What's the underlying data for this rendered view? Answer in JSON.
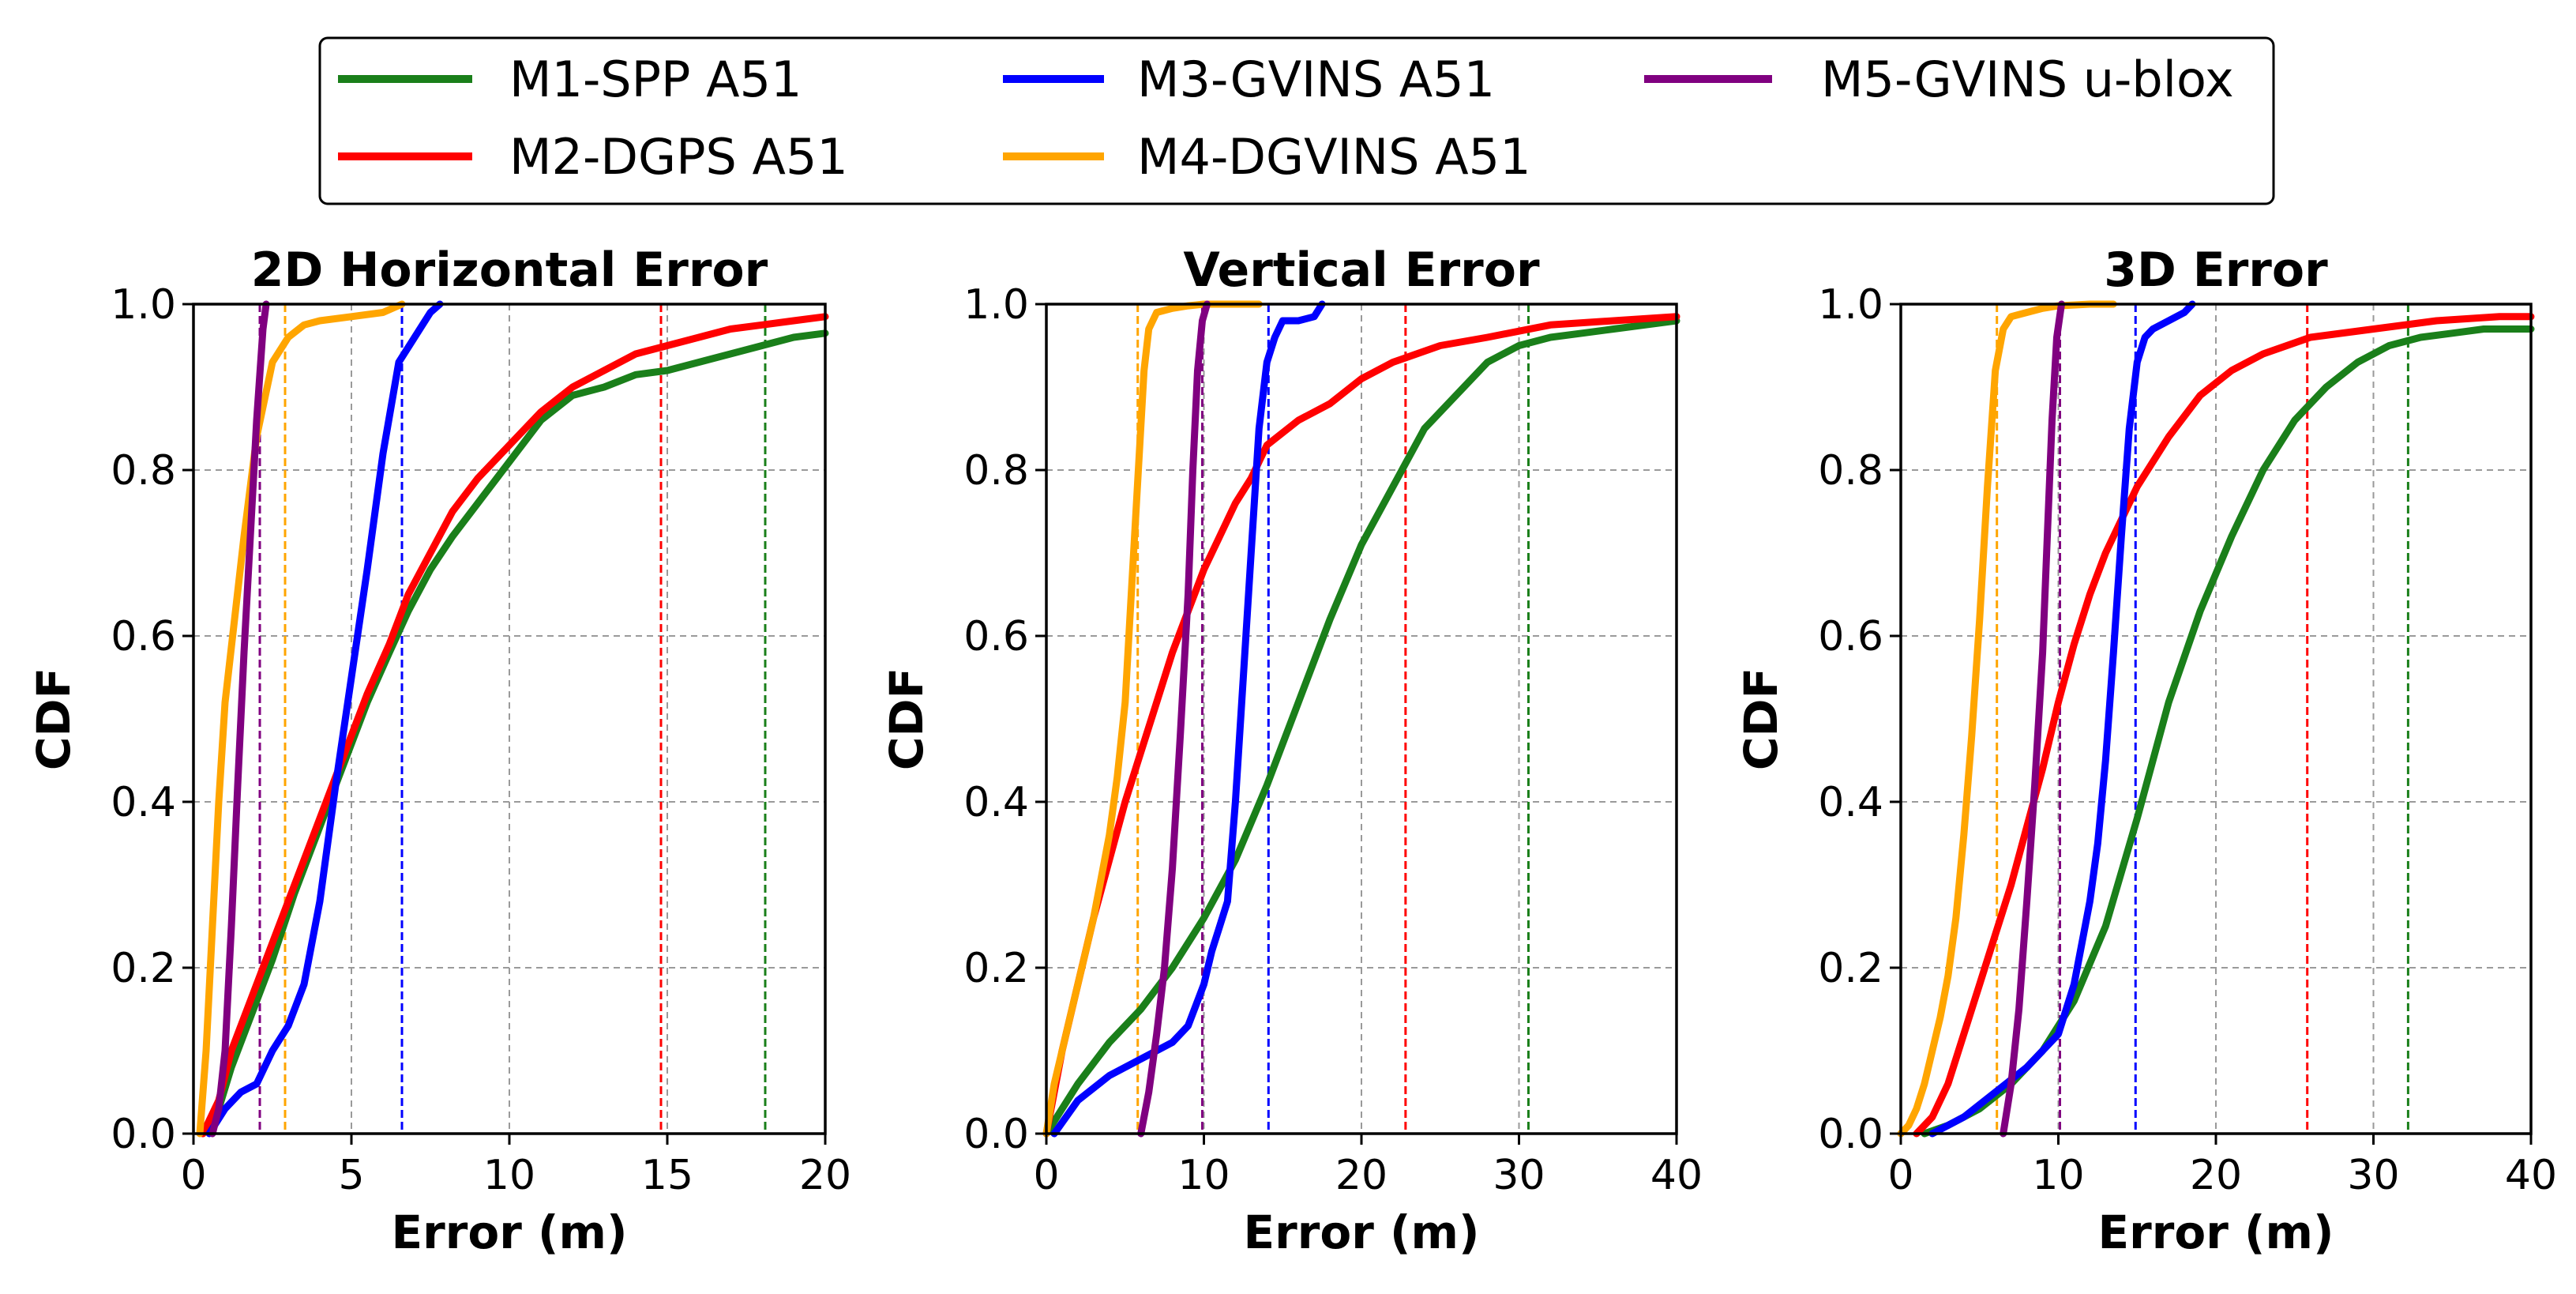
{
  "colors": {
    "M1": "#1a7f1a",
    "M2": "#ff0000",
    "M3": "#0000ff",
    "M4": "#ffa500",
    "M5": "#800080",
    "grid": "#9a9a9a",
    "frame": "#000000"
  },
  "legend": {
    "placement": "top-center",
    "entries": [
      {
        "key": "M1",
        "label": "M1-SPP A51"
      },
      {
        "key": "M2",
        "label": "M2-DGPS A51"
      },
      {
        "key": "M3",
        "label": "M3-GVINS A51"
      },
      {
        "key": "M4",
        "label": "M4-DGVINS A51"
      },
      {
        "key": "M5",
        "label": "M5-GVINS u-blox"
      }
    ]
  },
  "chart_data": [
    {
      "type": "line",
      "title": "2D Horizontal Error",
      "xlabel": "Error (m)",
      "ylabel": "CDF",
      "xlim": [
        0,
        20
      ],
      "ylim": [
        0,
        1.0
      ],
      "xticks": [
        0,
        5,
        10,
        15,
        20
      ],
      "xtick_labels": [
        "0",
        "5",
        "10",
        "15",
        "20"
      ],
      "yticks": [
        0,
        0.2,
        0.4,
        0.6,
        0.8,
        1.0
      ],
      "ytick_labels": [
        "0.0",
        "0.2",
        "0.4",
        "0.6",
        "0.8",
        "1.0"
      ],
      "grid": true,
      "series": [
        {
          "name": "M1-SPP A51",
          "key": "M1",
          "x": [
            0.3,
            0.8,
            1.2,
            1.8,
            2.5,
            3.2,
            4.0,
            4.8,
            5.5,
            6.2,
            6.8,
            7.5,
            8.2,
            9.0,
            10.0,
            11.0,
            12.0,
            13.0,
            14.0,
            15.0,
            16.0,
            17.0,
            18.0,
            19.0,
            20.0
          ],
          "y": [
            0,
            0.03,
            0.08,
            0.14,
            0.21,
            0.29,
            0.37,
            0.45,
            0.52,
            0.58,
            0.63,
            0.68,
            0.72,
            0.76,
            0.81,
            0.86,
            0.89,
            0.9,
            0.915,
            0.92,
            0.93,
            0.94,
            0.95,
            0.96,
            0.965
          ],
          "p95": 18.1
        },
        {
          "name": "M2-DGPS A51",
          "key": "M2",
          "x": [
            0.3,
            0.8,
            1.2,
            1.8,
            2.5,
            3.2,
            4.0,
            4.8,
            5.5,
            6.2,
            6.8,
            7.5,
            8.2,
            9.0,
            10.0,
            11.0,
            12.0,
            13.0,
            14.0,
            15.0,
            16.0,
            17.0,
            18.0,
            19.0,
            20.0
          ],
          "y": [
            0,
            0.04,
            0.1,
            0.16,
            0.23,
            0.3,
            0.38,
            0.46,
            0.53,
            0.59,
            0.65,
            0.7,
            0.75,
            0.79,
            0.83,
            0.87,
            0.9,
            0.92,
            0.94,
            0.95,
            0.96,
            0.97,
            0.975,
            0.98,
            0.985
          ],
          "p95": 14.8
        },
        {
          "name": "M3-GVINS A51",
          "key": "M3",
          "x": [
            0.5,
            1.0,
            1.5,
            2.0,
            2.5,
            3.0,
            3.5,
            4.0,
            4.5,
            5.0,
            5.5,
            6.0,
            6.5,
            7.0,
            7.5,
            7.8
          ],
          "y": [
            0,
            0.03,
            0.05,
            0.06,
            0.1,
            0.13,
            0.18,
            0.28,
            0.42,
            0.55,
            0.68,
            0.82,
            0.93,
            0.96,
            0.99,
            1.0
          ],
          "p95": 6.6
        },
        {
          "name": "M4-DGVINS A51",
          "key": "M4",
          "x": [
            0.2,
            0.4,
            0.6,
            0.8,
            1.0,
            1.3,
            1.6,
            2.0,
            2.5,
            3.0,
            3.5,
            4.0,
            5.0,
            6.0,
            6.6
          ],
          "y": [
            0,
            0.1,
            0.25,
            0.4,
            0.52,
            0.62,
            0.72,
            0.84,
            0.93,
            0.96,
            0.975,
            0.98,
            0.985,
            0.99,
            1.0
          ],
          "p95": 2.9
        },
        {
          "name": "M5-GVINS u-blox",
          "key": "M5",
          "x": [
            0.6,
            0.8,
            1.0,
            1.2,
            1.4,
            1.6,
            1.8,
            2.0,
            2.2,
            2.3
          ],
          "y": [
            0,
            0.03,
            0.1,
            0.25,
            0.42,
            0.58,
            0.72,
            0.86,
            0.97,
            1.0
          ],
          "p95": 2.1
        }
      ]
    },
    {
      "type": "line",
      "title": "Vertical Error",
      "xlabel": "Error (m)",
      "ylabel": "CDF",
      "xlim": [
        0,
        40
      ],
      "ylim": [
        0,
        1.0
      ],
      "xticks": [
        0,
        10,
        20,
        30,
        40
      ],
      "xtick_labels": [
        "0",
        "10",
        "20",
        "30",
        "40"
      ],
      "yticks": [
        0,
        0.2,
        0.4,
        0.6,
        0.8,
        1.0
      ],
      "ytick_labels": [
        "0.0",
        "0.2",
        "0.4",
        "0.6",
        "0.8",
        "1.0"
      ],
      "grid": true,
      "series": [
        {
          "name": "M1-SPP A51",
          "key": "M1",
          "x": [
            0,
            2,
            4,
            6,
            8,
            10,
            12,
            14,
            16,
            18,
            20,
            22,
            24,
            26,
            28,
            30,
            32,
            34,
            36,
            38,
            40
          ],
          "y": [
            0,
            0.06,
            0.11,
            0.15,
            0.2,
            0.26,
            0.33,
            0.42,
            0.52,
            0.62,
            0.71,
            0.78,
            0.85,
            0.89,
            0.93,
            0.95,
            0.96,
            0.965,
            0.97,
            0.975,
            0.98
          ],
          "p95": 30.6
        },
        {
          "name": "M2-DGPS A51",
          "key": "M2",
          "x": [
            0,
            1,
            2,
            3,
            4,
            5,
            6,
            7,
            8,
            9,
            10,
            11,
            12,
            13,
            14,
            16,
            18,
            20,
            22,
            25,
            28,
            32,
            36,
            40
          ],
          "y": [
            0,
            0.1,
            0.18,
            0.26,
            0.33,
            0.4,
            0.46,
            0.52,
            0.58,
            0.63,
            0.68,
            0.72,
            0.76,
            0.79,
            0.83,
            0.86,
            0.88,
            0.91,
            0.93,
            0.95,
            0.96,
            0.975,
            0.98,
            0.985
          ],
          "p95": 22.8
        },
        {
          "name": "M3-GVINS A51",
          "key": "M3",
          "x": [
            0.5,
            2,
            4,
            6,
            8,
            9,
            10,
            10.5,
            11,
            11.5,
            12,
            12.5,
            13,
            13.5,
            14,
            14.5,
            15,
            16,
            17,
            17.5
          ],
          "y": [
            0,
            0.04,
            0.07,
            0.09,
            0.11,
            0.13,
            0.18,
            0.22,
            0.25,
            0.28,
            0.4,
            0.55,
            0.7,
            0.85,
            0.93,
            0.96,
            0.98,
            0.98,
            0.985,
            1.0
          ],
          "p95": 14.1
        },
        {
          "name": "M4-DGVINS A51",
          "key": "M4",
          "x": [
            0,
            0.5,
            1,
            1.5,
            2,
            2.5,
            3,
            3.5,
            4,
            4.5,
            5,
            5.3,
            5.6,
            5.9,
            6.2,
            6.5,
            7,
            8,
            9,
            10,
            12,
            13.5
          ],
          "y": [
            0,
            0.06,
            0.1,
            0.14,
            0.18,
            0.22,
            0.26,
            0.31,
            0.36,
            0.43,
            0.52,
            0.62,
            0.72,
            0.82,
            0.92,
            0.97,
            0.99,
            0.995,
            0.998,
            1.0,
            1.0,
            1.0
          ],
          "p95": 5.8
        },
        {
          "name": "M5-GVINS u-blox",
          "key": "M5",
          "x": [
            6,
            6.5,
            7,
            7.5,
            8,
            8.5,
            9,
            9.3,
            9.6,
            9.9,
            10.2
          ],
          "y": [
            0,
            0.05,
            0.12,
            0.2,
            0.32,
            0.48,
            0.65,
            0.8,
            0.92,
            0.98,
            1.0
          ],
          "p95": 9.9
        }
      ]
    },
    {
      "type": "line",
      "title": "3D Error",
      "xlabel": "Error (m)",
      "ylabel": "CDF",
      "xlim": [
        0,
        40
      ],
      "ylim": [
        0,
        1.0
      ],
      "xticks": [
        0,
        10,
        20,
        30,
        40
      ],
      "xtick_labels": [
        "0",
        "10",
        "20",
        "30",
        "40"
      ],
      "yticks": [
        0,
        0.2,
        0.4,
        0.6,
        0.8,
        1.0
      ],
      "ytick_labels": [
        "0.0",
        "0.2",
        "0.4",
        "0.6",
        "0.8",
        "1.0"
      ],
      "grid": true,
      "series": [
        {
          "name": "M1-SPP A51",
          "key": "M1",
          "x": [
            1.5,
            3,
            5,
            7,
            9,
            11,
            13,
            15,
            17,
            19,
            21,
            23,
            25,
            27,
            29,
            31,
            33,
            35,
            37,
            40
          ],
          "y": [
            0,
            0.01,
            0.03,
            0.06,
            0.1,
            0.16,
            0.25,
            0.38,
            0.52,
            0.63,
            0.72,
            0.8,
            0.86,
            0.9,
            0.93,
            0.95,
            0.96,
            0.965,
            0.97,
            0.97
          ],
          "p95": 32.2
        },
        {
          "name": "M2-DGPS A51",
          "key": "M2",
          "x": [
            1,
            2,
            3,
            4,
            5,
            6,
            7,
            8,
            9,
            10,
            11,
            12,
            13,
            14,
            15,
            17,
            19,
            21,
            23,
            26,
            30,
            34,
            38,
            40
          ],
          "y": [
            0,
            0.02,
            0.06,
            0.12,
            0.18,
            0.24,
            0.3,
            0.37,
            0.44,
            0.52,
            0.59,
            0.65,
            0.7,
            0.74,
            0.78,
            0.84,
            0.89,
            0.92,
            0.94,
            0.96,
            0.97,
            0.98,
            0.985,
            0.985
          ],
          "p95": 25.8
        },
        {
          "name": "M3-GVINS A51",
          "key": "M3",
          "x": [
            2,
            4,
            6,
            8,
            9,
            10,
            11,
            12,
            12.5,
            13,
            13.5,
            14,
            14.5,
            15,
            15.5,
            16,
            17,
            18,
            18.5
          ],
          "y": [
            0,
            0.02,
            0.05,
            0.08,
            0.1,
            0.12,
            0.18,
            0.28,
            0.35,
            0.45,
            0.58,
            0.72,
            0.85,
            0.93,
            0.96,
            0.97,
            0.98,
            0.99,
            1.0
          ],
          "p95": 14.9
        },
        {
          "name": "M4-DGVINS A51",
          "key": "M4",
          "x": [
            0,
            0.5,
            1,
            1.5,
            2,
            2.5,
            3,
            3.5,
            4,
            4.5,
            5,
            5.5,
            6,
            6.5,
            7,
            8,
            9,
            10,
            12,
            13.5
          ],
          "y": [
            0,
            0.01,
            0.03,
            0.06,
            0.1,
            0.14,
            0.19,
            0.26,
            0.36,
            0.48,
            0.62,
            0.78,
            0.92,
            0.97,
            0.985,
            0.99,
            0.995,
            0.998,
            1.0,
            1.0
          ],
          "p95": 6.1
        },
        {
          "name": "M5-GVINS u-blox",
          "key": "M5",
          "x": [
            6.5,
            7,
            7.5,
            8,
            8.5,
            9,
            9.3,
            9.6,
            9.9,
            10.2
          ],
          "y": [
            0,
            0.06,
            0.15,
            0.28,
            0.42,
            0.58,
            0.72,
            0.86,
            0.96,
            1.0
          ],
          "p95": 10.1
        }
      ]
    }
  ]
}
